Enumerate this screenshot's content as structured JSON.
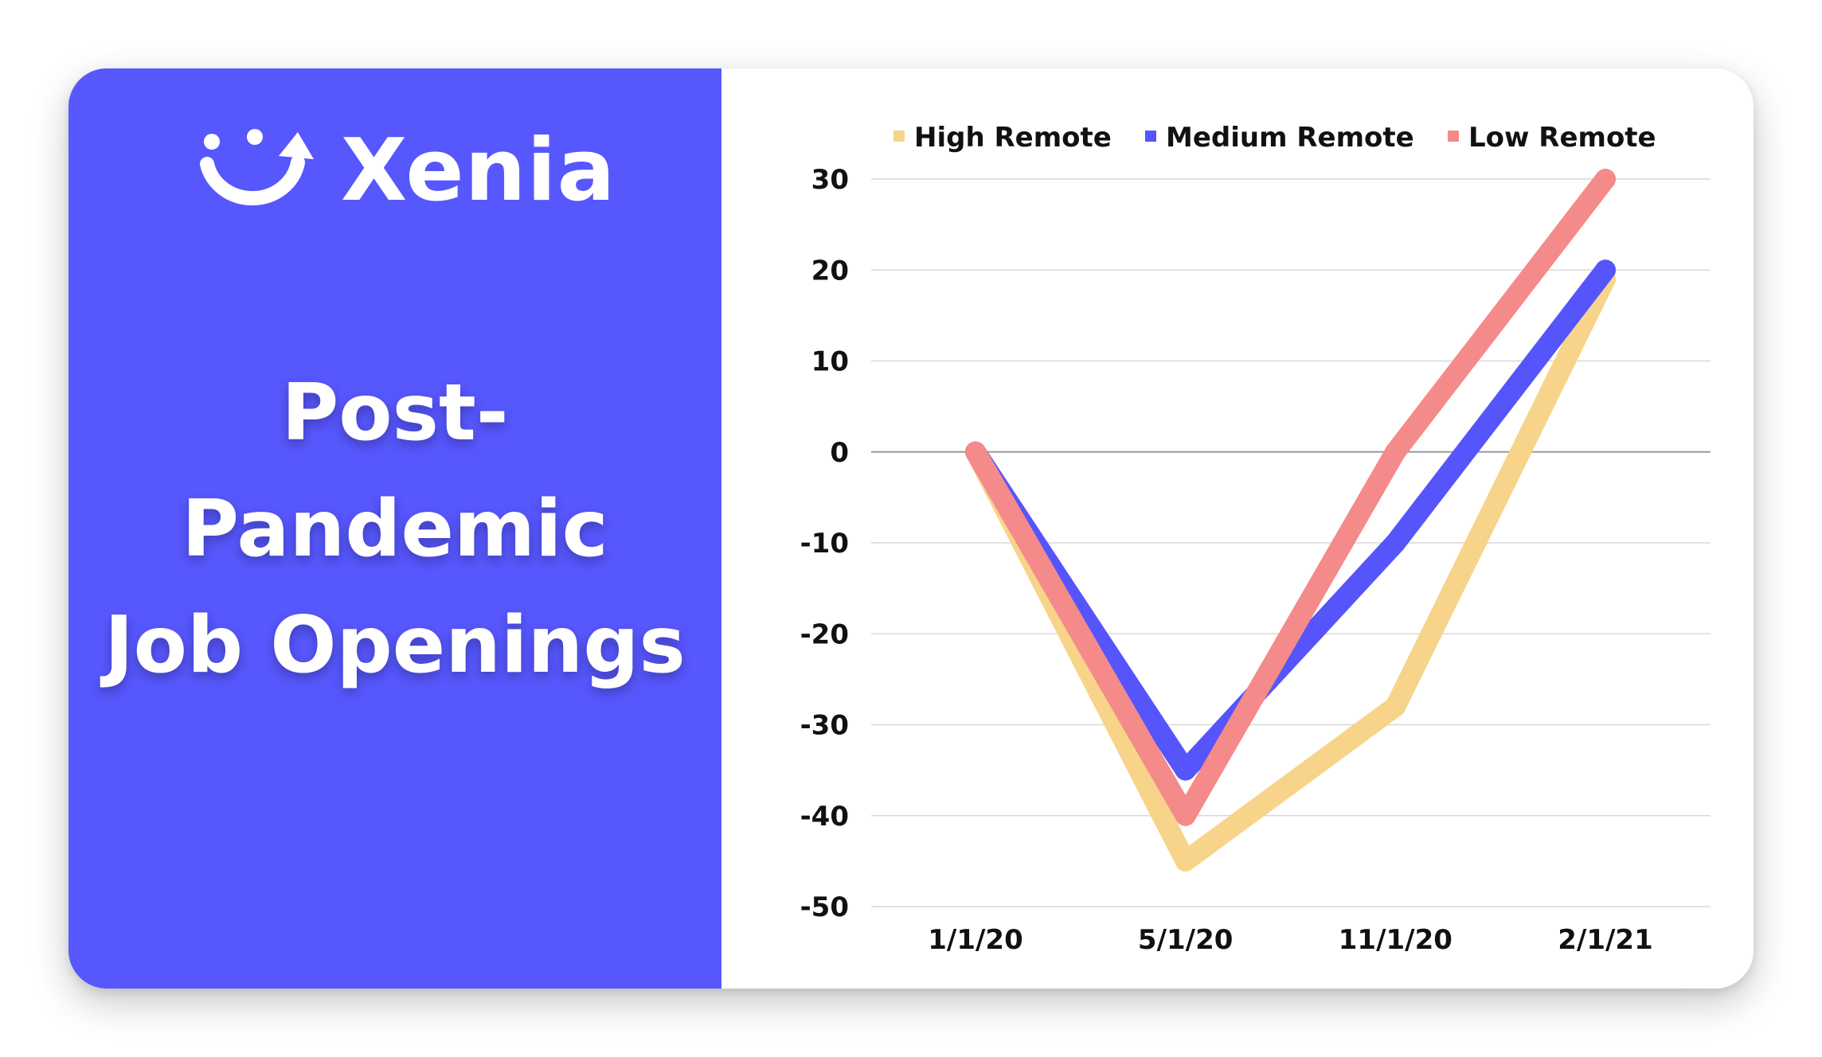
{
  "brand": {
    "name": "Xenia",
    "logo_icon": "smile-arrow-icon"
  },
  "headline": {
    "line1": "Post-",
    "line2": "Pandemic",
    "line3": "Job Openings"
  },
  "colors": {
    "panel": "#5757fe",
    "high": "#f7d48a",
    "medium": "#5555fb",
    "low": "#f58a8a",
    "grid": "#d9d9d9",
    "zero_line": "#9a9a9a"
  },
  "chart_data": {
    "type": "line",
    "title": "",
    "xlabel": "",
    "ylabel": "",
    "categories": [
      "1/1/20",
      "5/1/20",
      "11/1/20",
      "2/1/21"
    ],
    "series": [
      {
        "name": "High Remote",
        "values": [
          0,
          -45,
          -28,
          19
        ]
      },
      {
        "name": "Medium Remote",
        "values": [
          0,
          -35,
          -10,
          20
        ]
      },
      {
        "name": "Low Remote",
        "values": [
          0,
          -40,
          0,
          30
        ]
      }
    ],
    "ylim": [
      -50,
      30
    ],
    "yticks": [
      30,
      20,
      10,
      0,
      -10,
      -20,
      -30,
      -40,
      -50
    ],
    "grid": true,
    "legend": "top"
  }
}
